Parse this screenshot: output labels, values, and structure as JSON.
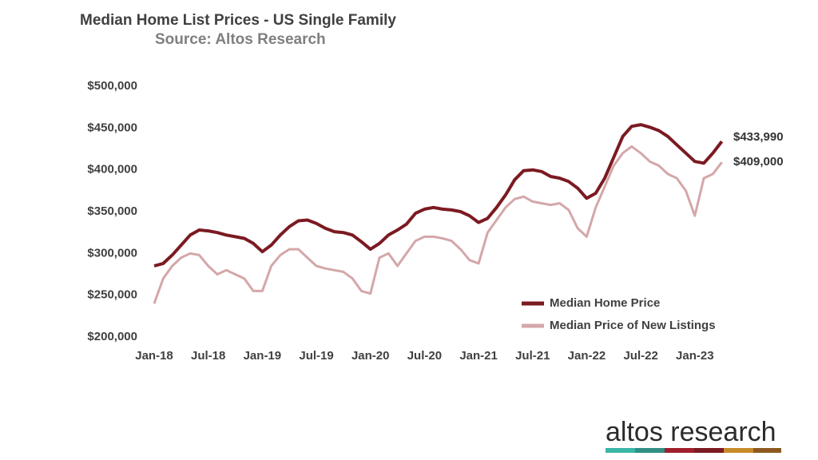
{
  "chart_data": {
    "type": "line",
    "title": "Median Home List Prices - US Single Family",
    "subtitle": "Source: Altos Research",
    "logo": "altos research",
    "categories": [
      "Jan-18",
      null,
      null,
      null,
      null,
      null,
      "Jul-18",
      null,
      null,
      null,
      null,
      null,
      "Jan-19",
      null,
      null,
      null,
      null,
      null,
      "Jul-19",
      null,
      null,
      null,
      null,
      null,
      "Jan-20",
      null,
      null,
      null,
      null,
      null,
      "Jul-20",
      null,
      null,
      null,
      null,
      null,
      "Jan-21",
      null,
      null,
      null,
      null,
      null,
      "Jul-21",
      null,
      null,
      null,
      null,
      null,
      "Jan-22",
      null,
      null,
      null,
      null,
      null,
      "Jul-22",
      null,
      null,
      null,
      null,
      null,
      "Jan-23",
      null,
      null,
      null
    ],
    "series": [
      {
        "name": "Median Home Price",
        "color": "#7b1a22",
        "end_label": "$433,990",
        "values": [
          285000,
          288000,
          298000,
          310000,
          322000,
          328000,
          327000,
          325000,
          322000,
          320000,
          318000,
          312000,
          302000,
          310000,
          322000,
          332000,
          339000,
          340000,
          336000,
          330000,
          326000,
          325000,
          322000,
          314000,
          305000,
          312000,
          322000,
          328000,
          335000,
          348000,
          353000,
          355000,
          353000,
          352000,
          350000,
          345000,
          337000,
          342000,
          355000,
          370000,
          388000,
          399000,
          400000,
          398000,
          392000,
          390000,
          386000,
          378000,
          366000,
          372000,
          390000,
          415000,
          440000,
          452000,
          454000,
          451000,
          447000,
          440000,
          430000,
          420000,
          410000,
          408000,
          420000,
          433990
        ]
      },
      {
        "name": "Median Price of New Listings",
        "color": "#d4a7a9",
        "end_label": "$409,000",
        "values": [
          240000,
          270000,
          285000,
          295000,
          300000,
          298000,
          285000,
          275000,
          280000,
          275000,
          270000,
          255000,
          255000,
          285000,
          298000,
          305000,
          305000,
          295000,
          285000,
          282000,
          280000,
          278000,
          270000,
          255000,
          252000,
          295000,
          300000,
          285000,
          300000,
          315000,
          320000,
          320000,
          318000,
          315000,
          305000,
          292000,
          288000,
          325000,
          340000,
          355000,
          365000,
          368000,
          362000,
          360000,
          358000,
          360000,
          352000,
          330000,
          320000,
          355000,
          380000,
          405000,
          420000,
          428000,
          420000,
          410000,
          405000,
          395000,
          390000,
          375000,
          345000,
          390000,
          395000,
          409000
        ]
      }
    ],
    "ylim": [
      200000,
      500000
    ],
    "yticks": [
      {
        "value": 200000,
        "label": "$200,000"
      },
      {
        "value": 250000,
        "label": "$250,000"
      },
      {
        "value": 300000,
        "label": "$300,000"
      },
      {
        "value": 350000,
        "label": "$350,000"
      },
      {
        "value": 400000,
        "label": "$400,000"
      },
      {
        "value": 450000,
        "label": "$450,000"
      },
      {
        "value": 500000,
        "label": "$500,000"
      }
    ],
    "grid": false
  }
}
